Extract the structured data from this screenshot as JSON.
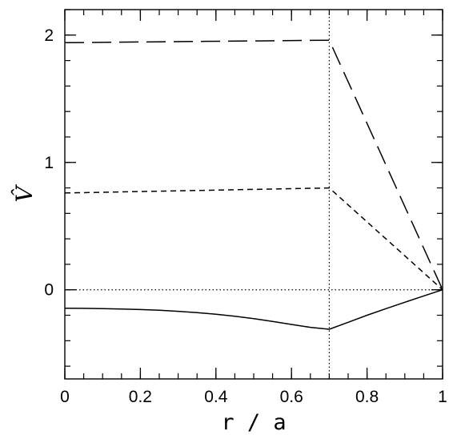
{
  "chart_data": {
    "type": "line",
    "xlabel": "r / a",
    "ylabel": "V̂",
    "xlim": [
      0,
      1
    ],
    "ylim": [
      -0.7,
      2.2
    ],
    "xticks": [
      {
        "v": 0,
        "label": "0"
      },
      {
        "v": 0.2,
        "label": "0.2"
      },
      {
        "v": 0.4,
        "label": "0.4"
      },
      {
        "v": 0.6,
        "label": "0.6"
      },
      {
        "v": 0.8,
        "label": "0.8"
      },
      {
        "v": 1,
        "label": "1"
      }
    ],
    "yticks": [
      {
        "v": 0,
        "label": "0"
      },
      {
        "v": 1,
        "label": "1"
      },
      {
        "v": 2,
        "label": "2"
      }
    ],
    "x_minor_step": 0.05,
    "y_minor_step": 0.2,
    "vertical_reference": {
      "x": 0.7,
      "style": "dotted"
    },
    "horizontal_reference": {
      "y": 0,
      "style": "dotted"
    },
    "grid": false,
    "series": [
      {
        "style": "long-dash",
        "x": [
          0,
          0.7,
          1.0
        ],
        "y": [
          1.94,
          1.96,
          0.0
        ]
      },
      {
        "style": "short-dash",
        "x": [
          0,
          0.7,
          1.0
        ],
        "y": [
          0.76,
          0.8,
          0.0
        ]
      },
      {
        "style": "solid",
        "x": [
          0,
          0.05,
          0.1,
          0.15,
          0.2,
          0.25,
          0.3,
          0.35,
          0.4,
          0.45,
          0.5,
          0.55,
          0.6,
          0.65,
          0.7,
          0.75,
          0.8,
          0.85,
          0.9,
          0.95,
          1.0
        ],
        "y": [
          -0.145,
          -0.146,
          -0.148,
          -0.151,
          -0.155,
          -0.161,
          -0.169,
          -0.179,
          -0.192,
          -0.208,
          -0.227,
          -0.249,
          -0.272,
          -0.295,
          -0.31,
          -0.255,
          -0.2,
          -0.148,
          -0.098,
          -0.048,
          0.0
        ]
      }
    ]
  }
}
